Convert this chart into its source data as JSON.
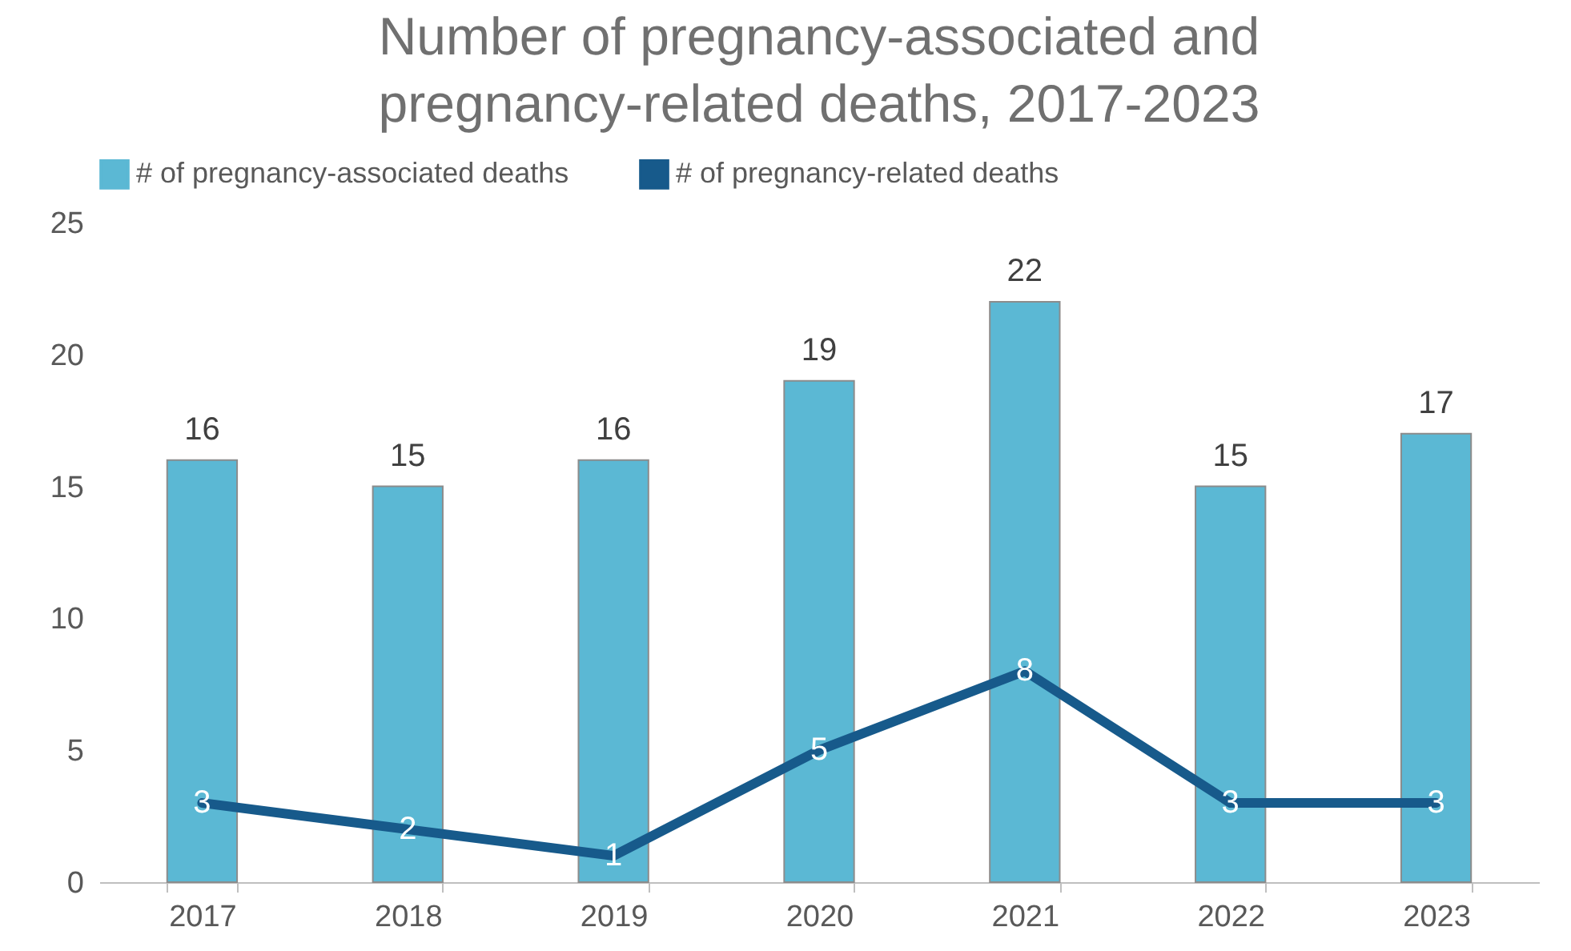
{
  "chart_data": {
    "type": "bar",
    "title": "Number of pregnancy-associated and pregnancy-related deaths, 2017-2023",
    "categories": [
      "2017",
      "2018",
      "2019",
      "2020",
      "2021",
      "2022",
      "2023"
    ],
    "series": [
      {
        "name": "# of pregnancy-associated deaths",
        "color": "#5bb8d4",
        "values": [
          16,
          15,
          16,
          19,
          22,
          15,
          17
        ]
      },
      {
        "name": "# of pregnancy-related deaths",
        "type": "line",
        "color": "#175a8b",
        "values": [
          3,
          2,
          1,
          5,
          8,
          3,
          3
        ]
      }
    ],
    "ylim": [
      0,
      25
    ],
    "yticks": [
      0,
      5,
      10,
      15,
      20,
      25
    ],
    "grid": false,
    "legend": "top",
    "data_labels": true,
    "marker": "none",
    "line_style": "solid"
  }
}
